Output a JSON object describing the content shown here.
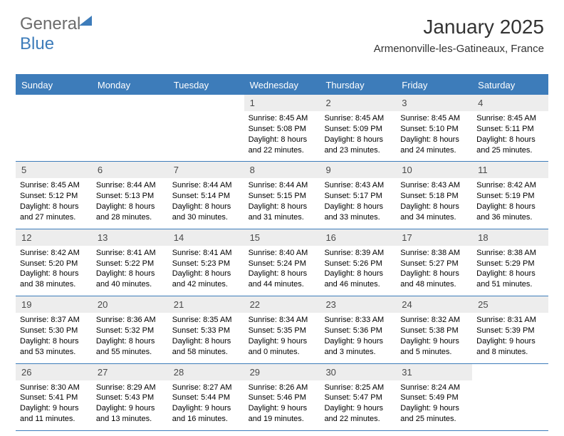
{
  "logo": {
    "textGray": "General",
    "textBlue": "Blue"
  },
  "header": {
    "title": "January 2025",
    "location": "Armenonville-les-Gatineaux, France"
  },
  "style": {
    "accent": "#3d7cba",
    "dayNumBg": "#ededed",
    "dayNumColor": "#4a4a4a",
    "headerTextColor": "#333333",
    "bodyBg": "#ffffff",
    "titleFontSize": 28,
    "locationFontSize": 15,
    "dayHeaderFontSize": 13,
    "dayNumFontSize": 13,
    "detailFontSize": 11
  },
  "dayNames": [
    "Sunday",
    "Monday",
    "Tuesday",
    "Wednesday",
    "Thursday",
    "Friday",
    "Saturday"
  ],
  "weeks": [
    [
      {
        "empty": true
      },
      {
        "empty": true
      },
      {
        "empty": true
      },
      {
        "num": "1",
        "sunrise": "8:45 AM",
        "sunset": "5:08 PM",
        "dl_h": "8",
        "dl_m": "22"
      },
      {
        "num": "2",
        "sunrise": "8:45 AM",
        "sunset": "5:09 PM",
        "dl_h": "8",
        "dl_m": "23"
      },
      {
        "num": "3",
        "sunrise": "8:45 AM",
        "sunset": "5:10 PM",
        "dl_h": "8",
        "dl_m": "24"
      },
      {
        "num": "4",
        "sunrise": "8:45 AM",
        "sunset": "5:11 PM",
        "dl_h": "8",
        "dl_m": "25"
      }
    ],
    [
      {
        "num": "5",
        "sunrise": "8:45 AM",
        "sunset": "5:12 PM",
        "dl_h": "8",
        "dl_m": "27"
      },
      {
        "num": "6",
        "sunrise": "8:44 AM",
        "sunset": "5:13 PM",
        "dl_h": "8",
        "dl_m": "28"
      },
      {
        "num": "7",
        "sunrise": "8:44 AM",
        "sunset": "5:14 PM",
        "dl_h": "8",
        "dl_m": "30"
      },
      {
        "num": "8",
        "sunrise": "8:44 AM",
        "sunset": "5:15 PM",
        "dl_h": "8",
        "dl_m": "31"
      },
      {
        "num": "9",
        "sunrise": "8:43 AM",
        "sunset": "5:17 PM",
        "dl_h": "8",
        "dl_m": "33"
      },
      {
        "num": "10",
        "sunrise": "8:43 AM",
        "sunset": "5:18 PM",
        "dl_h": "8",
        "dl_m": "34"
      },
      {
        "num": "11",
        "sunrise": "8:42 AM",
        "sunset": "5:19 PM",
        "dl_h": "8",
        "dl_m": "36"
      }
    ],
    [
      {
        "num": "12",
        "sunrise": "8:42 AM",
        "sunset": "5:20 PM",
        "dl_h": "8",
        "dl_m": "38"
      },
      {
        "num": "13",
        "sunrise": "8:41 AM",
        "sunset": "5:22 PM",
        "dl_h": "8",
        "dl_m": "40"
      },
      {
        "num": "14",
        "sunrise": "8:41 AM",
        "sunset": "5:23 PM",
        "dl_h": "8",
        "dl_m": "42"
      },
      {
        "num": "15",
        "sunrise": "8:40 AM",
        "sunset": "5:24 PM",
        "dl_h": "8",
        "dl_m": "44"
      },
      {
        "num": "16",
        "sunrise": "8:39 AM",
        "sunset": "5:26 PM",
        "dl_h": "8",
        "dl_m": "46"
      },
      {
        "num": "17",
        "sunrise": "8:38 AM",
        "sunset": "5:27 PM",
        "dl_h": "8",
        "dl_m": "48"
      },
      {
        "num": "18",
        "sunrise": "8:38 AM",
        "sunset": "5:29 PM",
        "dl_h": "8",
        "dl_m": "51"
      }
    ],
    [
      {
        "num": "19",
        "sunrise": "8:37 AM",
        "sunset": "5:30 PM",
        "dl_h": "8",
        "dl_m": "53"
      },
      {
        "num": "20",
        "sunrise": "8:36 AM",
        "sunset": "5:32 PM",
        "dl_h": "8",
        "dl_m": "55"
      },
      {
        "num": "21",
        "sunrise": "8:35 AM",
        "sunset": "5:33 PM",
        "dl_h": "8",
        "dl_m": "58"
      },
      {
        "num": "22",
        "sunrise": "8:34 AM",
        "sunset": "5:35 PM",
        "dl_h": "9",
        "dl_m": "0"
      },
      {
        "num": "23",
        "sunrise": "8:33 AM",
        "sunset": "5:36 PM",
        "dl_h": "9",
        "dl_m": "3"
      },
      {
        "num": "24",
        "sunrise": "8:32 AM",
        "sunset": "5:38 PM",
        "dl_h": "9",
        "dl_m": "5"
      },
      {
        "num": "25",
        "sunrise": "8:31 AM",
        "sunset": "5:39 PM",
        "dl_h": "9",
        "dl_m": "8"
      }
    ],
    [
      {
        "num": "26",
        "sunrise": "8:30 AM",
        "sunset": "5:41 PM",
        "dl_h": "9",
        "dl_m": "11"
      },
      {
        "num": "27",
        "sunrise": "8:29 AM",
        "sunset": "5:43 PM",
        "dl_h": "9",
        "dl_m": "13"
      },
      {
        "num": "28",
        "sunrise": "8:27 AM",
        "sunset": "5:44 PM",
        "dl_h": "9",
        "dl_m": "16"
      },
      {
        "num": "29",
        "sunrise": "8:26 AM",
        "sunset": "5:46 PM",
        "dl_h": "9",
        "dl_m": "19"
      },
      {
        "num": "30",
        "sunrise": "8:25 AM",
        "sunset": "5:47 PM",
        "dl_h": "9",
        "dl_m": "22"
      },
      {
        "num": "31",
        "sunrise": "8:24 AM",
        "sunset": "5:49 PM",
        "dl_h": "9",
        "dl_m": "25"
      },
      {
        "empty": true
      }
    ]
  ]
}
